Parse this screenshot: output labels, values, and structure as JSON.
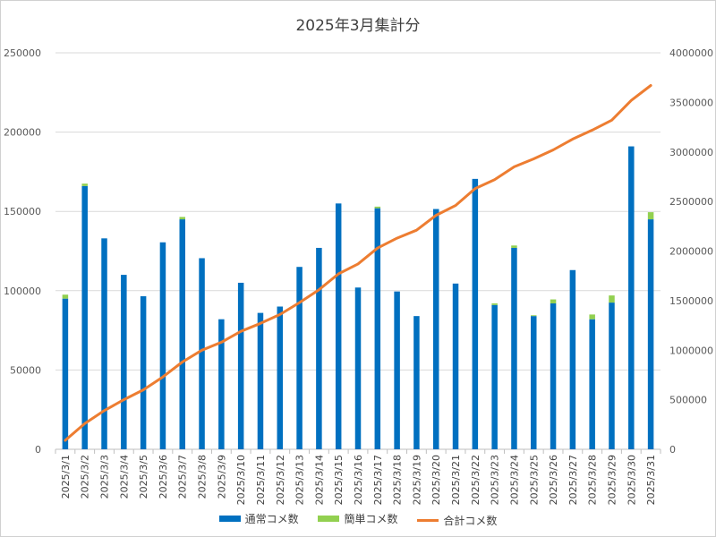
{
  "chart_data": {
    "type": "bar+line",
    "title": "2025年3月集計分",
    "categories": [
      "2025/3/1",
      "2025/3/2",
      "2025/3/3",
      "2025/3/4",
      "2025/3/5",
      "2025/3/6",
      "2025/3/7",
      "2025/3/8",
      "2025/3/9",
      "2025/3/10",
      "2025/3/11",
      "2025/3/12",
      "2025/3/13",
      "2025/3/14",
      "2025/3/15",
      "2025/3/16",
      "2025/3/17",
      "2025/3/18",
      "2025/3/19",
      "2025/3/20",
      "2025/3/21",
      "2025/3/22",
      "2025/3/23",
      "2025/3/24",
      "2025/3/25",
      "2025/3/26",
      "2025/3/27",
      "2025/3/28",
      "2025/3/29",
      "2025/3/30",
      "2025/3/31"
    ],
    "series": [
      {
        "name": "通常コメ数",
        "type": "bar",
        "axis": "left",
        "color": "#0070C0",
        "values": [
          95000,
          166000,
          133000,
          110000,
          96500,
          130500,
          145000,
          120500,
          82000,
          105000,
          86000,
          90000,
          115000,
          127000,
          155000,
          102000,
          152000,
          99500,
          84000,
          151500,
          104500,
          170500,
          91000,
          127000,
          84000,
          92000,
          113000,
          82000,
          92500,
          191000,
          145000
        ]
      },
      {
        "name": "簡単コメ数",
        "type": "bar",
        "stacked": true,
        "axis": "left",
        "color": "#92D050",
        "values": [
          2500,
          1500,
          0,
          0,
          0,
          0,
          1500,
          0,
          0,
          0,
          0,
          0,
          0,
          0,
          0,
          0,
          1000,
          0,
          0,
          0,
          0,
          0,
          1000,
          1500,
          500,
          2500,
          0,
          3000,
          4500,
          0,
          4500
        ]
      },
      {
        "name": "合計コメ数",
        "type": "line",
        "axis": "right",
        "color": "#ED7D31",
        "values": [
          90000,
          260000,
          390000,
          500000,
          600000,
          730000,
          880000,
          1000000,
          1080000,
          1190000,
          1270000,
          1360000,
          1480000,
          1610000,
          1770000,
          1870000,
          2030000,
          2130000,
          2210000,
          2360000,
          2460000,
          2630000,
          2720000,
          2850000,
          2930000,
          3020000,
          3130000,
          3220000,
          3320000,
          3520000,
          3670000
        ]
      }
    ],
    "y_left": {
      "min": 0,
      "max": 250000,
      "ticks": [
        "0",
        "50000",
        "100000",
        "150000",
        "200000",
        "250000"
      ]
    },
    "y_right": {
      "min": 0,
      "max": 4000000,
      "ticks": [
        "0",
        "500000",
        "1000000",
        "1500000",
        "2000000",
        "2500000",
        "3000000",
        "3500000",
        "4000000"
      ]
    },
    "grid": true,
    "legend_position": "bottom"
  }
}
